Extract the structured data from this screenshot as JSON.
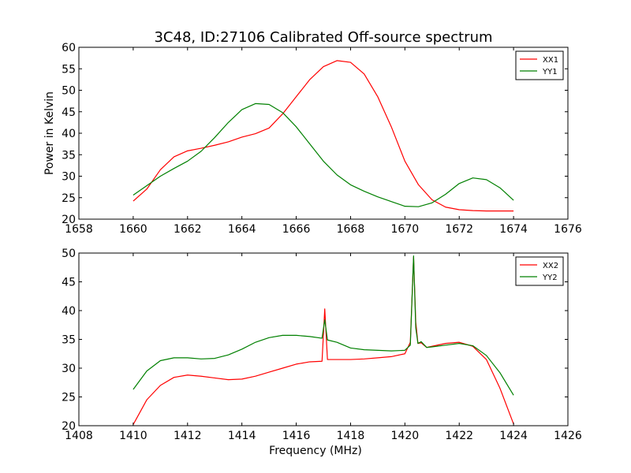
{
  "figure": {
    "title": "3C48, ID:27106 Calibrated Off-source spectrum"
  },
  "colors": {
    "red": "#ff0000",
    "green": "#008000"
  },
  "chart_data": [
    {
      "type": "line",
      "title": "3C48, ID:27106 Calibrated Off-source spectrum",
      "xlabel": "",
      "ylabel": "Power in Kelvin",
      "xlim": [
        1658,
        1676
      ],
      "ylim": [
        20,
        60
      ],
      "xticks": [
        "1658",
        "1660",
        "1662",
        "1664",
        "1666",
        "1668",
        "1670",
        "1672",
        "1674",
        "1676"
      ],
      "yticks": [
        "20",
        "25",
        "30",
        "35",
        "40",
        "45",
        "50",
        "55",
        "60"
      ],
      "grid": false,
      "legend": "top-right",
      "series": [
        {
          "name": "XX1",
          "color": "#ff0000",
          "x": [
            1660,
            1660.5,
            1661,
            1661.5,
            1662,
            1662.5,
            1663,
            1663.5,
            1664,
            1664.5,
            1665,
            1665.5,
            1666,
            1666.5,
            1667,
            1667.5,
            1668,
            1668.5,
            1669,
            1669.5,
            1670,
            1670.5,
            1671,
            1671.5,
            1672,
            1672.5,
            1673,
            1673.5,
            1674
          ],
          "y": [
            24.2,
            27.0,
            31.5,
            34.5,
            35.9,
            36.5,
            37.2,
            38.0,
            39.1,
            39.9,
            41.2,
            44.5,
            48.5,
            52.5,
            55.5,
            56.9,
            56.5,
            53.8,
            48.5,
            41.5,
            33.5,
            28.0,
            24.5,
            22.8,
            22.2,
            22.0,
            21.9,
            21.9,
            21.9
          ]
        },
        {
          "name": "YY1",
          "color": "#008000",
          "x": [
            1660,
            1660.5,
            1661,
            1661.5,
            1662,
            1662.5,
            1663,
            1663.5,
            1664,
            1664.5,
            1665,
            1665.5,
            1666,
            1666.5,
            1667,
            1667.5,
            1668,
            1668.5,
            1669,
            1669.5,
            1670,
            1670.5,
            1671,
            1671.5,
            1672,
            1672.5,
            1673,
            1673.5,
            1674
          ],
          "y": [
            25.6,
            27.8,
            30.0,
            31.8,
            33.5,
            35.8,
            39.0,
            42.5,
            45.5,
            46.9,
            46.7,
            44.8,
            41.5,
            37.5,
            33.5,
            30.3,
            28.0,
            26.5,
            25.2,
            24.1,
            23.0,
            22.9,
            23.8,
            25.8,
            28.3,
            29.6,
            29.2,
            27.3,
            24.4
          ]
        }
      ]
    },
    {
      "type": "line",
      "title": "",
      "xlabel": "Frequency (MHz)",
      "ylabel": "",
      "xlim": [
        1408,
        1426
      ],
      "ylim": [
        20,
        50
      ],
      "xticks": [
        "1408",
        "1410",
        "1412",
        "1414",
        "1416",
        "1418",
        "1420",
        "1422",
        "1424",
        "1426"
      ],
      "yticks": [
        "20",
        "25",
        "30",
        "35",
        "40",
        "45",
        "50"
      ],
      "grid": false,
      "legend": "top-right",
      "series": [
        {
          "name": "XX2",
          "color": "#ff0000",
          "x": [
            1410,
            1410.5,
            1411,
            1411.5,
            1412,
            1412.5,
            1413,
            1413.5,
            1414,
            1414.5,
            1415,
            1415.5,
            1416,
            1416.5,
            1416.95,
            1417.05,
            1417.15,
            1417.5,
            1418,
            1418.5,
            1419,
            1419.5,
            1420,
            1420.2,
            1420.32,
            1420.4,
            1420.48,
            1420.6,
            1420.8,
            1421,
            1421.5,
            1422,
            1422.5,
            1423,
            1423.5,
            1424
          ],
          "y": [
            20.2,
            24.5,
            27.0,
            28.4,
            28.8,
            28.6,
            28.3,
            28.0,
            28.1,
            28.6,
            29.3,
            30.0,
            30.7,
            31.1,
            31.2,
            40.3,
            31.5,
            31.5,
            31.5,
            31.6,
            31.8,
            32.0,
            32.5,
            34.5,
            49.3,
            38.0,
            34.3,
            34.4,
            33.6,
            33.8,
            34.3,
            34.5,
            33.8,
            31.5,
            26.5,
            20.3
          ]
        },
        {
          "name": "YY2",
          "color": "#008000",
          "x": [
            1410,
            1410.5,
            1411,
            1411.5,
            1412,
            1412.5,
            1413,
            1413.5,
            1414,
            1414.5,
            1415,
            1415.5,
            1416,
            1416.5,
            1416.95,
            1417.05,
            1417.15,
            1417.5,
            1418,
            1418.5,
            1419,
            1419.5,
            1420,
            1420.2,
            1420.32,
            1420.4,
            1420.48,
            1420.6,
            1420.8,
            1421,
            1421.5,
            1422,
            1422.5,
            1423,
            1423.5,
            1424
          ],
          "y": [
            26.3,
            29.5,
            31.3,
            31.8,
            31.8,
            31.6,
            31.7,
            32.3,
            33.3,
            34.5,
            35.3,
            35.7,
            35.7,
            35.5,
            35.2,
            38.4,
            34.9,
            34.5,
            33.5,
            33.2,
            33.1,
            33.0,
            33.1,
            34.0,
            49.5,
            37.0,
            34.3,
            34.6,
            33.6,
            33.7,
            34.0,
            34.3,
            33.9,
            32.2,
            29.2,
            25.3
          ]
        }
      ]
    }
  ]
}
